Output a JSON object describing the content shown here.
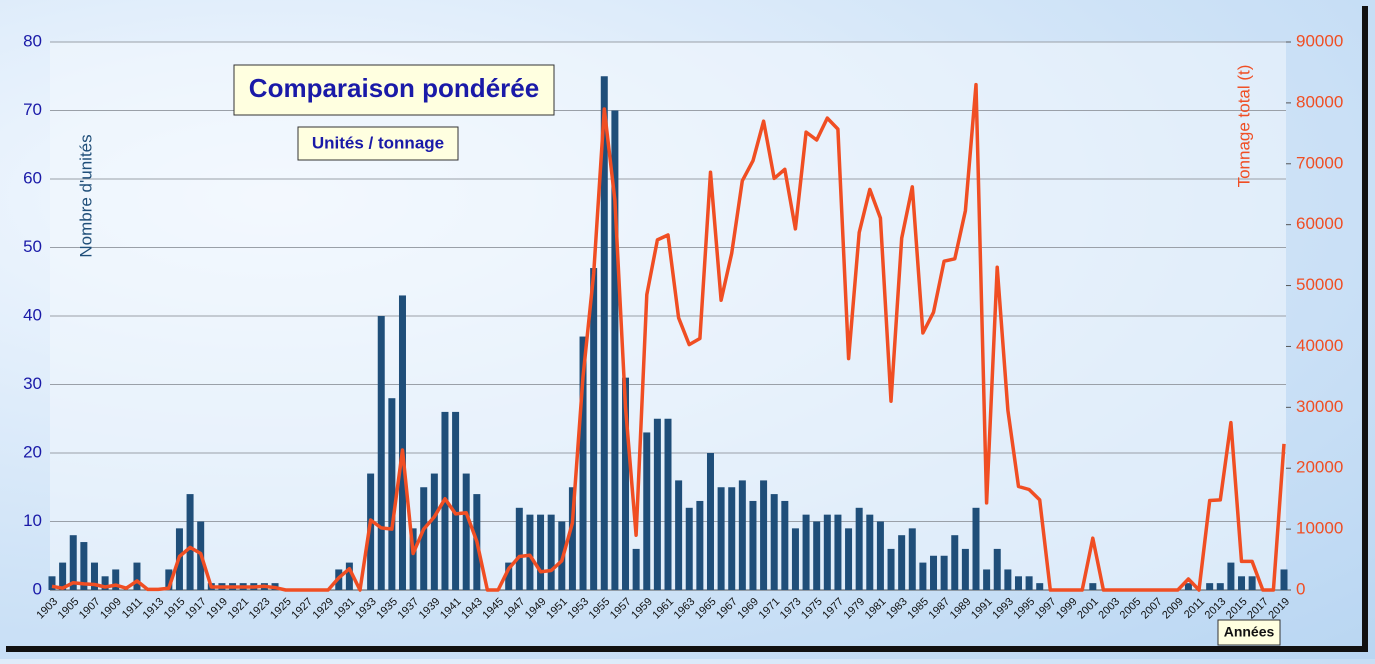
{
  "chart_data": {
    "type": "bar-line",
    "title": "Comparaison pondérée",
    "subtitle": "Unités / tonnage",
    "y_label": "Nombre d'unités",
    "y2_label": "Tonnage total (t)",
    "x_label": "Années",
    "categories": [
      "1903",
      null,
      "1905",
      null,
      "1907",
      null,
      "1909",
      null,
      "1911",
      null,
      "1913",
      null,
      "1915",
      null,
      "1917",
      null,
      "1919",
      null,
      "1921",
      null,
      "1923",
      null,
      "1925",
      null,
      "1927",
      null,
      "1929",
      null,
      "1931",
      null,
      "1933",
      null,
      "1935",
      null,
      "1937",
      null,
      "1939",
      null,
      "1941",
      null,
      "1943",
      null,
      "1945",
      null,
      "1947",
      null,
      "1949",
      null,
      "1951",
      null,
      "1953",
      null,
      "1955",
      null,
      "1957",
      null,
      "1959",
      null,
      "1961",
      null,
      "1963",
      null,
      "1965",
      null,
      "1967",
      null,
      "1969",
      null,
      "1971",
      null,
      "1973",
      null,
      "1975",
      null,
      "1977",
      null,
      "1979",
      null,
      "1981",
      null,
      "1983",
      null,
      "1985",
      null,
      "1987",
      null,
      "1989",
      null,
      "1991",
      null,
      "1993",
      null,
      "1995",
      null,
      "1997",
      null,
      "1999",
      null,
      "2001",
      null,
      "2003",
      null,
      "2005",
      null,
      "2007",
      null,
      "2009",
      null,
      "2011",
      null,
      "2013",
      null,
      "2015",
      null,
      "2017",
      null,
      "2019"
    ],
    "series": [
      {
        "type": "bar",
        "color": "#1f4e79",
        "values": [
          2,
          4,
          8,
          7,
          4,
          2,
          3,
          0,
          4,
          0,
          0,
          3,
          9,
          14,
          10,
          1,
          1,
          1,
          1,
          1,
          1,
          1,
          0,
          0,
          0,
          0,
          0,
          3,
          4,
          0,
          17,
          40,
          28,
          43,
          9,
          15,
          17,
          26,
          26,
          17,
          14,
          0,
          0,
          4,
          12,
          11,
          11,
          11,
          10,
          15,
          37,
          47,
          75,
          70,
          31,
          6,
          23,
          25,
          25,
          16,
          12,
          13,
          20,
          15,
          15,
          16,
          13,
          16,
          14,
          13,
          9,
          11,
          10,
          11,
          11,
          9,
          12,
          11,
          10,
          6,
          8,
          9,
          4,
          5,
          5,
          8,
          6,
          12,
          3,
          6,
          3,
          2,
          2,
          1,
          0,
          0,
          0,
          0,
          1,
          0,
          0,
          0,
          0,
          0,
          0,
          0,
          0,
          1,
          0,
          1,
          1,
          4,
          2,
          2,
          0,
          0,
          3
        ]
      },
      {
        "type": "line",
        "axis": "y2",
        "color": "#f04e23",
        "values": [
          600,
          300,
          1200,
          1000,
          900,
          500,
          800,
          300,
          1500,
          100,
          100,
          300,
          5500,
          7000,
          6000,
          500,
          500,
          500,
          500,
          500,
          600,
          400,
          0,
          0,
          0,
          0,
          0,
          2000,
          3500,
          0,
          11500,
          10200,
          10000,
          23000,
          6000,
          10000,
          12000,
          15000,
          12500,
          12700,
          8000,
          0,
          0,
          3500,
          5500,
          5700,
          3000,
          3200,
          4800,
          11000,
          35000,
          52000,
          79000,
          64000,
          30000,
          9000,
          48500,
          57500,
          58300,
          44700,
          40300,
          41300,
          68600,
          47600,
          55300,
          67200,
          70500,
          77000,
          67600,
          69100,
          59300,
          75200,
          73900,
          77500,
          75700,
          38000,
          58700,
          65800,
          61100,
          31000,
          57800,
          66200,
          42200,
          45600,
          54000,
          54400,
          62300,
          83000,
          14300,
          53000,
          29500,
          17000,
          16500,
          14800,
          0,
          0,
          0,
          0,
          8500,
          0,
          0,
          0,
          0,
          0,
          0,
          0,
          0,
          1800,
          0,
          14700,
          14800,
          27500,
          4700,
          4700,
          0,
          0,
          24000
        ]
      }
    ],
    "ylim": [
      0,
      80
    ],
    "yticks": [
      0,
      10,
      20,
      30,
      40,
      50,
      60,
      70,
      80
    ],
    "y2lim": [
      0,
      90000
    ],
    "y2ticks": [
      0,
      10000,
      20000,
      30000,
      40000,
      50000,
      60000,
      70000,
      80000,
      90000
    ],
    "grid": true
  }
}
